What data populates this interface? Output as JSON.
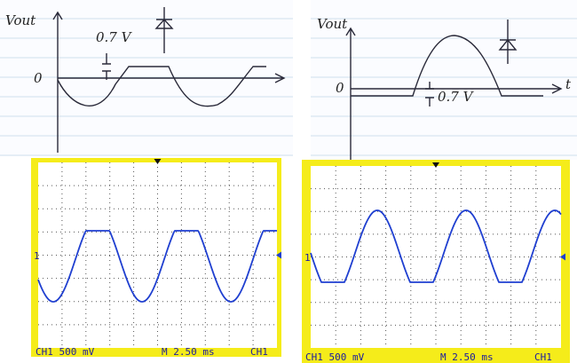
{
  "left_sketch": {
    "axis_label": "Vout",
    "drop_label": "0.7 V",
    "zero_label": "0"
  },
  "right_sketch": {
    "axis_label": "Vout",
    "zero_label": "0",
    "drop_label": "0.7 V",
    "time_label": "t"
  },
  "left_scope": {
    "channel_marker": "1",
    "channel_scale": "CH1  500 mV",
    "timebase": "M 2.50 ms",
    "trigger": "CH1"
  },
  "right_scope": {
    "channel_marker": "1",
    "channel_scale": "CH1  500 mV",
    "timebase": "M 2.50 ms",
    "trigger": "CH1"
  }
}
